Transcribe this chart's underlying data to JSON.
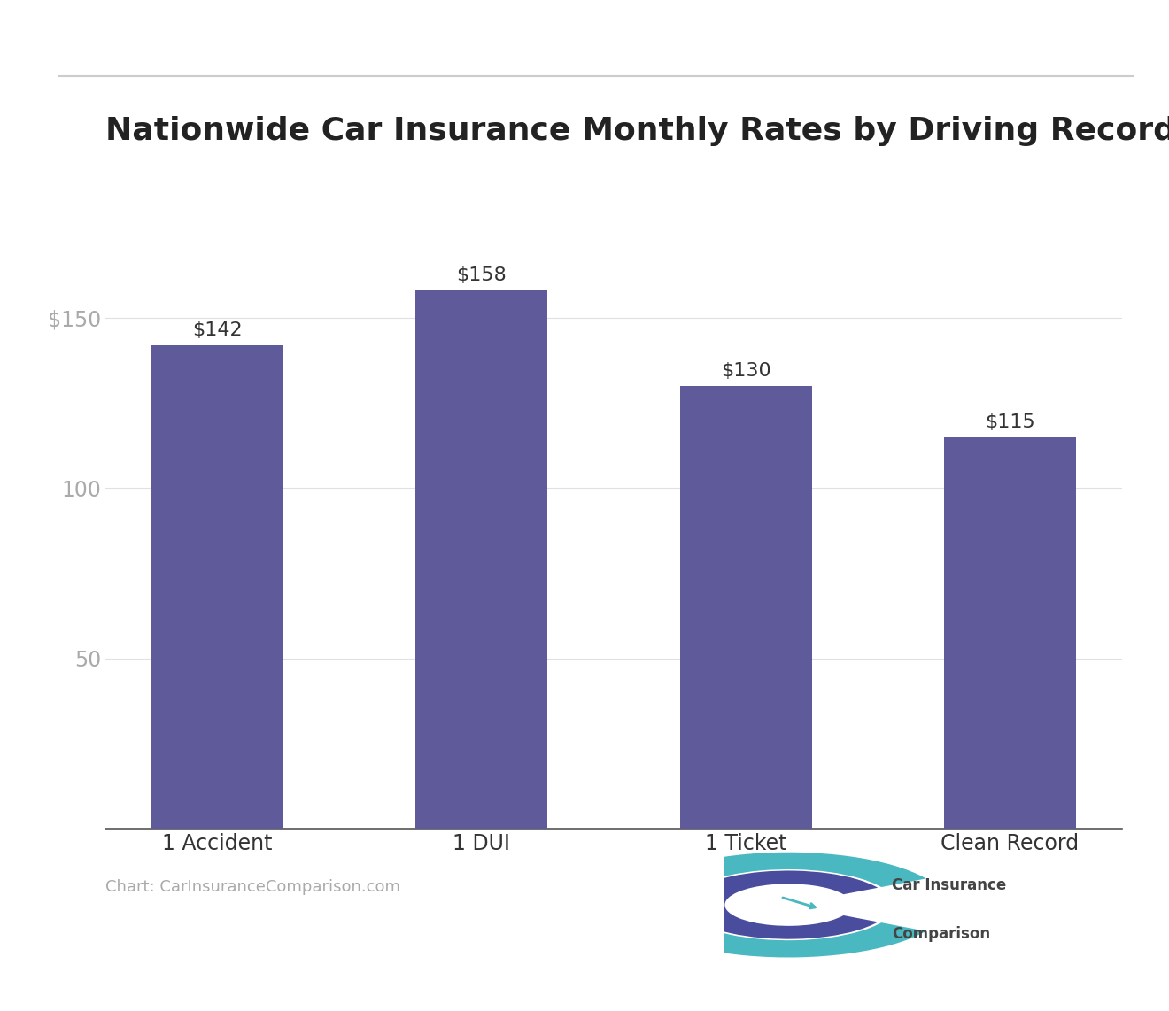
{
  "title": "Nationwide Car Insurance Monthly Rates by Driving Record",
  "categories": [
    "1 Accident",
    "1 DUI",
    "1 Ticket",
    "Clean Record"
  ],
  "values": [
    142,
    158,
    130,
    115
  ],
  "bar_color": "#5f5b9b",
  "value_labels": [
    "$142",
    "$158",
    "$130",
    "$115"
  ],
  "yticks": [
    50,
    100,
    150
  ],
  "ytick_labels": [
    "50",
    "100",
    "$150"
  ],
  "ylim": [
    0,
    178
  ],
  "source_text": "Chart: CarInsuranceComparison.com",
  "title_fontsize": 26,
  "tick_fontsize": 17,
  "label_fontsize": 17,
  "value_label_fontsize": 16,
  "source_fontsize": 13,
  "background_color": "#ffffff",
  "bar_width": 0.5,
  "separator_color": "#cccccc",
  "grid_color": "#e0e0e0",
  "ytick_color": "#aaaaaa",
  "xtick_color": "#333333",
  "title_color": "#222222",
  "source_color": "#aaaaaa",
  "value_label_color": "#333333"
}
